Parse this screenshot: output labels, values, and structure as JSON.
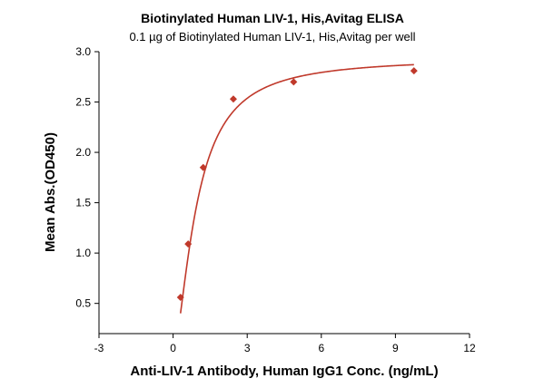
{
  "chart_data": {
    "type": "scatter",
    "title": "Biotinylated Human LIV-1, His,Avitag ELISA",
    "subtitle": "0.1 µg of Biotinylated Human LIV-1, His,Avitag per well",
    "xlabel": "Anti-LIV-1 Antibody, Human IgG1 Conc. (ng/mL)",
    "ylabel": "Mean Abs.(OD450)",
    "xlim": [
      -3,
      12
    ],
    "ylim": [
      0.2,
      3.0
    ],
    "x_ticks": [
      -3,
      0,
      3,
      6,
      9,
      12
    ],
    "y_ticks": [
      0.5,
      1.0,
      1.5,
      2.0,
      2.5,
      3.0
    ],
    "x_tick_labels": [
      "-3",
      "0",
      "3",
      "6",
      "9",
      "12"
    ],
    "y_tick_labels": [
      "0.5",
      "1.0",
      "1.5",
      "2.0",
      "2.5",
      "3.0"
    ],
    "grid": false,
    "legend": "none",
    "series": [
      {
        "marker": "diamond",
        "color": "#c0392b",
        "points": [
          {
            "x": 0.3,
            "y": 0.56
          },
          {
            "x": 0.61,
            "y": 1.09
          },
          {
            "x": 1.22,
            "y": 1.85
          },
          {
            "x": 2.44,
            "y": 2.53
          },
          {
            "x": 4.88,
            "y": 2.7
          },
          {
            "x": 9.75,
            "y": 2.81
          }
        ]
      }
    ],
    "fit_curve": {
      "type": "4PL",
      "color": "#c0392b",
      "top": 2.94,
      "bottom": 0,
      "ec50": 0.95,
      "hill": 1.6,
      "x_start": 0.3,
      "x_end": 9.75
    }
  }
}
